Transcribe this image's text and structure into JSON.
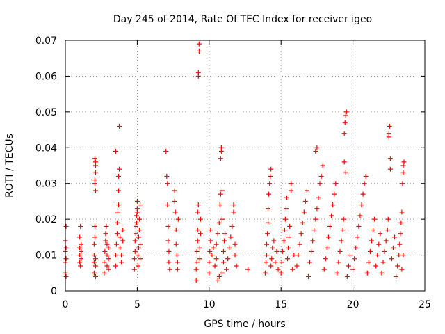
{
  "chart_data": {
    "type": "scatter",
    "title": "Day 245 of 2014, Rate Of TEC Index for receiver igeo",
    "xlabel": "GPS time / hours",
    "ylabel": "ROTI / TECUs",
    "xlim": [
      0,
      25
    ],
    "ylim": [
      0,
      0.07
    ],
    "xticks": [
      0,
      5,
      10,
      15,
      20,
      25
    ],
    "xtick_labels": [
      "0",
      "5",
      "10",
      "15",
      "20",
      "25"
    ],
    "yticks": [
      0,
      0.01,
      0.02,
      0.03,
      0.04,
      0.05,
      0.06,
      0.07
    ],
    "ytick_labels": [
      "0",
      "0.01",
      "0.02",
      "0.03",
      "0.04",
      "0.05",
      "0.06",
      "0.07"
    ],
    "grid": true,
    "marker": "+",
    "color": "#ff0000",
    "series": [
      {
        "name": "ROTI",
        "points": [
          [
            0.0,
            0.005
          ],
          [
            0.0,
            0.008
          ],
          [
            0.0,
            0.011
          ],
          [
            0.0,
            0.014
          ],
          [
            0.05,
            0.018
          ],
          [
            0.05,
            0.004
          ],
          [
            0.05,
            0.009
          ],
          [
            0.05,
            0.012
          ],
          [
            1.0,
            0.008
          ],
          [
            1.0,
            0.01
          ],
          [
            1.0,
            0.012
          ],
          [
            1.0,
            0.015
          ],
          [
            1.05,
            0.018
          ],
          [
            1.05,
            0.007
          ],
          [
            1.1,
            0.009
          ],
          [
            1.1,
            0.011
          ],
          [
            1.1,
            0.013
          ],
          [
            2.0,
            0.005
          ],
          [
            2.0,
            0.008
          ],
          [
            2.0,
            0.01
          ],
          [
            2.0,
            0.013
          ],
          [
            2.05,
            0.018
          ],
          [
            2.05,
            0.015
          ],
          [
            2.1,
            0.004
          ],
          [
            2.1,
            0.007
          ],
          [
            2.1,
            0.009
          ],
          [
            2.05,
            0.03
          ],
          [
            2.05,
            0.031
          ],
          [
            2.1,
            0.033
          ],
          [
            2.1,
            0.035
          ],
          [
            2.1,
            0.036
          ],
          [
            2.05,
            0.037
          ],
          [
            2.1,
            0.028
          ],
          [
            2.7,
            0.005
          ],
          [
            2.7,
            0.008
          ],
          [
            2.75,
            0.011
          ],
          [
            2.8,
            0.014
          ],
          [
            2.8,
            0.016
          ],
          [
            2.85,
            0.018
          ],
          [
            2.9,
            0.007
          ],
          [
            2.9,
            0.01
          ],
          [
            2.9,
            0.013
          ],
          [
            3.0,
            0.006
          ],
          [
            3.0,
            0.009
          ],
          [
            3.0,
            0.012
          ],
          [
            3.5,
            0.007
          ],
          [
            3.5,
            0.01
          ],
          [
            3.55,
            0.013
          ],
          [
            3.6,
            0.016
          ],
          [
            3.6,
            0.019
          ],
          [
            3.65,
            0.022
          ],
          [
            3.7,
            0.024
          ],
          [
            3.7,
            0.028
          ],
          [
            3.7,
            0.032
          ],
          [
            3.75,
            0.034
          ],
          [
            3.75,
            0.046
          ],
          [
            3.5,
            0.039
          ],
          [
            3.8,
            0.012
          ],
          [
            3.8,
            0.015
          ],
          [
            3.9,
            0.008
          ],
          [
            3.9,
            0.01
          ],
          [
            4.0,
            0.014
          ],
          [
            4.0,
            0.017
          ],
          [
            4.8,
            0.006
          ],
          [
            4.8,
            0.009
          ],
          [
            4.85,
            0.011
          ],
          [
            4.85,
            0.014
          ],
          [
            4.9,
            0.016
          ],
          [
            4.9,
            0.018
          ],
          [
            4.95,
            0.019
          ],
          [
            4.95,
            0.021
          ],
          [
            5.0,
            0.022
          ],
          [
            5.0,
            0.023
          ],
          [
            5.0,
            0.025
          ],
          [
            5.05,
            0.007
          ],
          [
            5.05,
            0.01
          ],
          [
            5.1,
            0.012
          ],
          [
            5.1,
            0.015
          ],
          [
            5.15,
            0.017
          ],
          [
            5.15,
            0.02
          ],
          [
            5.2,
            0.024
          ],
          [
            5.2,
            0.013
          ],
          [
            5.2,
            0.009
          ],
          [
            7.0,
            0.039
          ],
          [
            7.05,
            0.032
          ],
          [
            7.1,
            0.03
          ],
          [
            7.1,
            0.024
          ],
          [
            7.15,
            0.018
          ],
          [
            7.15,
            0.014
          ],
          [
            7.2,
            0.011
          ],
          [
            7.2,
            0.008
          ],
          [
            7.25,
            0.006
          ],
          [
            7.6,
            0.028
          ],
          [
            7.6,
            0.025
          ],
          [
            7.65,
            0.022
          ],
          [
            7.7,
            0.017
          ],
          [
            7.7,
            0.013
          ],
          [
            7.75,
            0.01
          ],
          [
            7.8,
            0.008
          ],
          [
            7.8,
            0.006
          ],
          [
            7.85,
            0.02
          ],
          [
            9.1,
            0.003
          ],
          [
            9.1,
            0.006
          ],
          [
            9.15,
            0.008
          ],
          [
            9.15,
            0.011
          ],
          [
            9.2,
            0.014
          ],
          [
            9.2,
            0.017
          ],
          [
            9.2,
            0.022
          ],
          [
            9.25,
            0.024
          ],
          [
            9.25,
            0.06
          ],
          [
            9.25,
            0.061
          ],
          [
            9.3,
            0.067
          ],
          [
            9.3,
            0.069
          ],
          [
            9.35,
            0.009
          ],
          [
            9.35,
            0.012
          ],
          [
            9.4,
            0.02
          ],
          [
            9.4,
            0.016
          ],
          [
            10.0,
            0.005
          ],
          [
            10.0,
            0.008
          ],
          [
            10.05,
            0.011
          ],
          [
            10.1,
            0.014
          ],
          [
            10.1,
            0.017
          ],
          [
            10.2,
            0.01
          ],
          [
            10.3,
            0.012
          ],
          [
            10.4,
            0.007
          ],
          [
            10.5,
            0.009
          ],
          [
            10.5,
            0.013
          ],
          [
            10.6,
            0.016
          ],
          [
            10.7,
            0.019
          ],
          [
            10.75,
            0.024
          ],
          [
            10.8,
            0.027
          ],
          [
            10.8,
            0.037
          ],
          [
            10.85,
            0.039
          ],
          [
            10.85,
            0.04
          ],
          [
            10.9,
            0.02
          ],
          [
            10.9,
            0.028
          ],
          [
            11.0,
            0.008
          ],
          [
            11.0,
            0.011
          ],
          [
            11.05,
            0.014
          ],
          [
            11.1,
            0.016
          ],
          [
            11.2,
            0.006
          ],
          [
            11.3,
            0.009
          ],
          [
            11.4,
            0.012
          ],
          [
            11.5,
            0.015
          ],
          [
            11.6,
            0.018
          ],
          [
            11.7,
            0.022
          ],
          [
            11.7,
            0.024
          ],
          [
            11.8,
            0.01
          ],
          [
            11.8,
            0.013
          ],
          [
            11.9,
            0.007
          ],
          [
            10.6,
            0.003
          ],
          [
            10.7,
            0.004
          ],
          [
            10.9,
            0.005
          ],
          [
            12.7,
            0.006
          ],
          [
            13.9,
            0.005
          ],
          [
            13.95,
            0.008
          ],
          [
            14.0,
            0.01
          ],
          [
            14.0,
            0.013
          ],
          [
            14.05,
            0.016
          ],
          [
            14.1,
            0.019
          ],
          [
            14.1,
            0.023
          ],
          [
            14.15,
            0.027
          ],
          [
            14.2,
            0.03
          ],
          [
            14.25,
            0.032
          ],
          [
            14.3,
            0.034
          ],
          [
            14.3,
            0.007
          ],
          [
            14.35,
            0.009
          ],
          [
            14.4,
            0.012
          ],
          [
            14.5,
            0.014
          ],
          [
            14.6,
            0.008
          ],
          [
            14.7,
            0.011
          ],
          [
            14.8,
            0.006
          ],
          [
            15.0,
            0.005
          ],
          [
            15.05,
            0.008
          ],
          [
            15.1,
            0.011
          ],
          [
            15.2,
            0.014
          ],
          [
            15.25,
            0.017
          ],
          [
            15.3,
            0.02
          ],
          [
            15.35,
            0.023
          ],
          [
            15.4,
            0.026
          ],
          [
            15.45,
            0.009
          ],
          [
            15.5,
            0.012
          ],
          [
            15.55,
            0.015
          ],
          [
            15.6,
            0.018
          ],
          [
            15.7,
            0.028
          ],
          [
            15.7,
            0.03
          ],
          [
            15.8,
            0.006
          ],
          [
            15.9,
            0.01
          ],
          [
            16.1,
            0.007
          ],
          [
            16.2,
            0.01
          ],
          [
            16.3,
            0.013
          ],
          [
            16.4,
            0.016
          ],
          [
            16.5,
            0.019
          ],
          [
            16.6,
            0.022
          ],
          [
            16.7,
            0.025
          ],
          [
            16.8,
            0.028
          ],
          [
            16.9,
            0.004
          ],
          [
            17.0,
            0.008
          ],
          [
            17.1,
            0.011
          ],
          [
            17.2,
            0.014
          ],
          [
            17.3,
            0.017
          ],
          [
            17.4,
            0.02
          ],
          [
            17.5,
            0.023
          ],
          [
            17.6,
            0.026
          ],
          [
            17.7,
            0.03
          ],
          [
            17.8,
            0.032
          ],
          [
            17.9,
            0.035
          ],
          [
            17.4,
            0.039
          ],
          [
            17.5,
            0.04
          ],
          [
            18.0,
            0.006
          ],
          [
            18.1,
            0.009
          ],
          [
            18.2,
            0.012
          ],
          [
            18.3,
            0.015
          ],
          [
            18.4,
            0.018
          ],
          [
            18.5,
            0.021
          ],
          [
            18.6,
            0.024
          ],
          [
            18.7,
            0.027
          ],
          [
            18.8,
            0.03
          ],
          [
            18.9,
            0.005
          ],
          [
            19.0,
            0.008
          ],
          [
            19.1,
            0.011
          ],
          [
            19.2,
            0.014
          ],
          [
            19.3,
            0.017
          ],
          [
            19.35,
            0.02
          ],
          [
            19.4,
            0.044
          ],
          [
            19.45,
            0.047
          ],
          [
            19.5,
            0.049
          ],
          [
            19.55,
            0.05
          ],
          [
            19.4,
            0.036
          ],
          [
            19.5,
            0.033
          ],
          [
            19.6,
            0.004
          ],
          [
            19.7,
            0.007
          ],
          [
            19.8,
            0.01
          ],
          [
            20.0,
            0.006
          ],
          [
            20.1,
            0.009
          ],
          [
            20.2,
            0.012
          ],
          [
            20.3,
            0.015
          ],
          [
            20.4,
            0.018
          ],
          [
            20.5,
            0.021
          ],
          [
            20.6,
            0.024
          ],
          [
            20.7,
            0.027
          ],
          [
            20.8,
            0.03
          ],
          [
            20.9,
            0.032
          ],
          [
            21.0,
            0.005
          ],
          [
            21.1,
            0.008
          ],
          [
            21.2,
            0.011
          ],
          [
            21.3,
            0.014
          ],
          [
            21.4,
            0.017
          ],
          [
            21.5,
            0.02
          ],
          [
            21.6,
            0.007
          ],
          [
            21.7,
            0.01
          ],
          [
            21.8,
            0.013
          ],
          [
            21.9,
            0.016
          ],
          [
            22.0,
            0.005
          ],
          [
            22.1,
            0.008
          ],
          [
            22.2,
            0.011
          ],
          [
            22.3,
            0.014
          ],
          [
            22.4,
            0.017
          ],
          [
            22.45,
            0.02
          ],
          [
            22.5,
            0.043
          ],
          [
            22.5,
            0.044
          ],
          [
            22.55,
            0.046
          ],
          [
            22.6,
            0.037
          ],
          [
            22.6,
            0.034
          ],
          [
            22.7,
            0.009
          ],
          [
            22.8,
            0.012
          ],
          [
            22.9,
            0.015
          ],
          [
            23.0,
            0.004
          ],
          [
            23.1,
            0.007
          ],
          [
            23.2,
            0.01
          ],
          [
            23.25,
            0.013
          ],
          [
            23.3,
            0.016
          ],
          [
            23.35,
            0.019
          ],
          [
            23.4,
            0.022
          ],
          [
            23.45,
            0.03
          ],
          [
            23.5,
            0.033
          ],
          [
            23.5,
            0.035
          ],
          [
            23.55,
            0.036
          ],
          [
            23.4,
            0.006
          ],
          [
            23.5,
            0.01
          ]
        ]
      }
    ]
  }
}
